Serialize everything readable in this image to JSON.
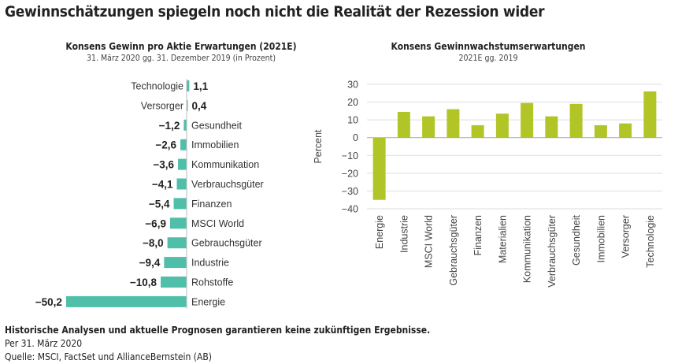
{
  "title": "Gewinnschätzungen spiegeln noch nicht die Realität der Rezession wider",
  "chart_data": [
    {
      "type": "bar",
      "orientation": "horizontal",
      "title": "Konsens Gewinn pro Aktie Erwartungen (2021E)",
      "subtitle": "31. März 2020 gg. 31. Dezember 2019 (in Prozent)",
      "categories": [
        "Technologie",
        "Versorger",
        "Gesundheit",
        "Immobilien",
        "Kommunikation",
        "Verbrauchsgüter",
        "Finanzen",
        "MSCI World",
        "Gebrauchsgüter",
        "Industrie",
        "Rohstoffe",
        "Energie"
      ],
      "values": [
        1.1,
        0.4,
        -1.2,
        -2.6,
        -3.6,
        -4.1,
        -5.4,
        -6.9,
        -8.0,
        -9.4,
        -10.8,
        -50.2
      ],
      "data_labels": [
        "1,1",
        "0,4",
        "−1,2",
        "−2,6",
        "−3,6",
        "−4,1",
        "−5,4",
        "−6,9",
        "−8,0",
        "−9,4",
        "−10,8",
        "−50,2"
      ],
      "color": "#4fbfaa"
    },
    {
      "type": "bar",
      "title": "Konsens Gewinnwachstumserwartungen",
      "subtitle": "2021E gg. 2019",
      "ylabel": "Percent",
      "ylim": [
        -40,
        30
      ],
      "yticks": [
        30,
        20,
        10,
        0,
        -10,
        -20,
        -30,
        -40
      ],
      "ytick_labels": [
        "30",
        "20",
        "10",
        "0",
        "−10",
        "−20",
        "−30",
        "−40"
      ],
      "grid": true,
      "categories": [
        "Energie",
        "Industrie",
        "MSCI World",
        "Gebrauchsgüter",
        "Finanzen",
        "Materialien",
        "Kommunikation",
        "Verbrauchsgüter",
        "Gesundheit",
        "Immobilien",
        "Versorger",
        "Technologie"
      ],
      "values": [
        -35,
        14.5,
        12,
        16,
        7,
        13.5,
        19.5,
        12,
        19,
        7,
        8,
        26
      ],
      "color": "#b2c527"
    }
  ],
  "footer": {
    "disclaimer": "Historische Analysen und aktuelle Prognosen garantieren keine zukünftigen Ergebnisse.",
    "date": "Per 31. März 2020",
    "source": "Quelle: MSCI, FactSet und AllianceBernstein (AB)"
  }
}
